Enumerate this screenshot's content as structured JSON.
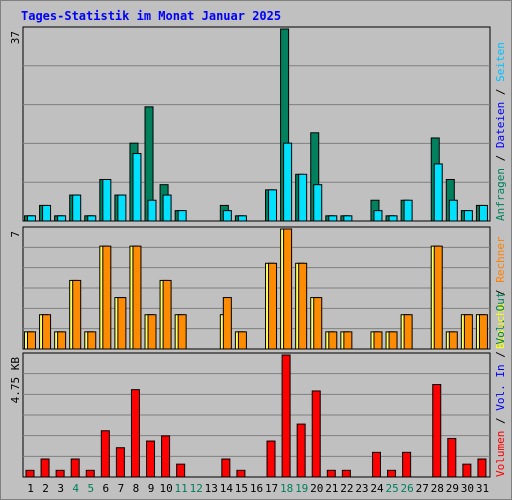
{
  "title": "Tages-Statistik im Monat Januar 2025",
  "legend": {
    "top": [
      {
        "text": "Anfragen",
        "color": "#00805c"
      },
      {
        "text": "Dateien",
        "color": "#0000ff"
      },
      {
        "text": "Seiten",
        "color": "#00c0ff"
      }
    ],
    "mid": [
      {
        "text": "Besuche",
        "color": "#ffff00"
      },
      {
        "text": "Rechner",
        "color": "#ff8000"
      }
    ],
    "bottom": [
      {
        "text": "Volumen",
        "color": "#ff0000"
      },
      {
        "text": "Vol. In",
        "color": "#0000ff"
      },
      {
        "text": "Vol. Out",
        "color": "#00805c"
      }
    ],
    "separator": "/"
  },
  "colors": {
    "anfragen": "#00805c",
    "dateien": "#00e0ff",
    "besuche": "#ffff60",
    "rechner": "#ff8c00",
    "volumen": "#ff0000",
    "weekend_label": "#00805c",
    "weekday_label": "#000000"
  },
  "chart_data": [
    {
      "type": "bar",
      "panel": "requests",
      "ymax_label": "37",
      "ylim": [
        0,
        37
      ],
      "grid": true,
      "categories": [
        "1",
        "2",
        "3",
        "4",
        "5",
        "6",
        "7",
        "8",
        "9",
        "10",
        "11",
        "12",
        "13",
        "14",
        "15",
        "16",
        "17",
        "18",
        "19",
        "20",
        "21",
        "22",
        "23",
        "24",
        "25",
        "26",
        "27",
        "28",
        "29",
        "30",
        "31"
      ],
      "weekend_days": [
        "4",
        "5",
        "11",
        "12",
        "18",
        "19",
        "25",
        "26"
      ],
      "series": [
        {
          "name": "Anfragen",
          "values": [
            1,
            3,
            1,
            5,
            1,
            8,
            5,
            15,
            22,
            7,
            2,
            0,
            0,
            3,
            1,
            0,
            6,
            37,
            9,
            17,
            1,
            1,
            0,
            4,
            1,
            4,
            0,
            16,
            8,
            2,
            3
          ]
        },
        {
          "name": "Dateien",
          "values": [
            1,
            3,
            1,
            5,
            1,
            8,
            5,
            13,
            4,
            5,
            2,
            0,
            0,
            2,
            1,
            0,
            6,
            15,
            9,
            7,
            1,
            1,
            0,
            2,
            1,
            4,
            0,
            11,
            4,
            2,
            3
          ]
        }
      ]
    },
    {
      "type": "bar",
      "panel": "visits",
      "ymax_label": "7",
      "ylim": [
        0,
        7
      ],
      "grid": true,
      "categories": [
        "1",
        "2",
        "3",
        "4",
        "5",
        "6",
        "7",
        "8",
        "9",
        "10",
        "11",
        "12",
        "13",
        "14",
        "15",
        "16",
        "17",
        "18",
        "19",
        "20",
        "21",
        "22",
        "23",
        "24",
        "25",
        "26",
        "27",
        "28",
        "29",
        "30",
        "31"
      ],
      "series": [
        {
          "name": "Besuche",
          "values": [
            1,
            2,
            1,
            4,
            1,
            6,
            3,
            6,
            2,
            4,
            2,
            0,
            0,
            2,
            1,
            0,
            5,
            7,
            5,
            3,
            1,
            1,
            0,
            1,
            1,
            2,
            0,
            6,
            1,
            2,
            2
          ]
        },
        {
          "name": "Rechner",
          "values": [
            1,
            2,
            1,
            4,
            1,
            6,
            3,
            6,
            2,
            4,
            2,
            0,
            0,
            3,
            1,
            0,
            5,
            7,
            5,
            3,
            1,
            1,
            0,
            1,
            1,
            2,
            0,
            6,
            1,
            2,
            2
          ]
        }
      ]
    },
    {
      "type": "bar",
      "panel": "volume",
      "ymax_label": "4.75 KB",
      "ylim": [
        0,
        4.75
      ],
      "grid": true,
      "categories": [
        "1",
        "2",
        "3",
        "4",
        "5",
        "6",
        "7",
        "8",
        "9",
        "10",
        "11",
        "12",
        "13",
        "14",
        "15",
        "16",
        "17",
        "18",
        "19",
        "20",
        "21",
        "22",
        "23",
        "24",
        "25",
        "26",
        "27",
        "28",
        "29",
        "30",
        "31"
      ],
      "series": [
        {
          "name": "Volumen",
          "values": [
            0.26,
            0.7,
            0.26,
            0.7,
            0.26,
            1.8,
            1.14,
            3.4,
            1.4,
            1.6,
            0.5,
            0,
            0,
            0.7,
            0.26,
            0,
            1.4,
            4.75,
            2.06,
            3.35,
            0.26,
            0.26,
            0,
            0.96,
            0.26,
            0.96,
            0,
            3.6,
            1.5,
            0.5,
            0.7
          ]
        }
      ]
    }
  ]
}
